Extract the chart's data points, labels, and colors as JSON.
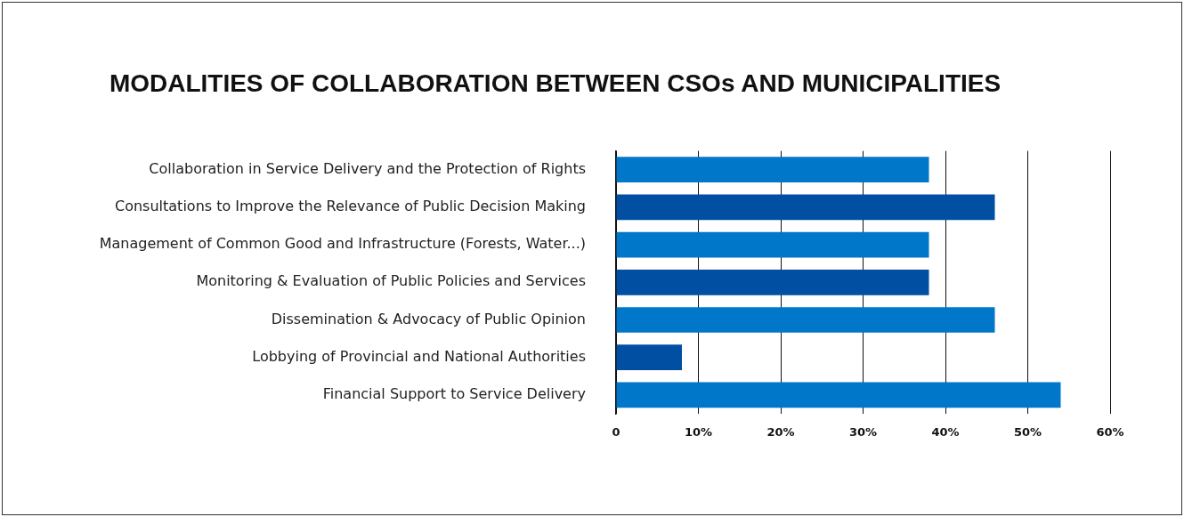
{
  "chart_data": {
    "type": "bar",
    "orientation": "horizontal",
    "title": "MODALITIES OF COLLABORATION BETWEEN CSOs AND MUNICIPALITIES",
    "categories": [
      "Collaboration in Service Delivery and the Protection of Rights",
      "Consultations to Improve the Relevance of Public Decision Making",
      "Management of Common Good and Infrastructure (Forests, Water...)",
      "Monitoring & Evaluation of Public Policies and Services",
      "Dissemination & Advocacy of Public Opinion",
      "Lobbying of Provincial and National Authorities",
      "Financial Support to Service Delivery"
    ],
    "values": [
      38,
      46,
      38,
      38,
      46,
      8,
      54
    ],
    "colors": [
      "#0077c8",
      "#004fa3",
      "#0077c8",
      "#004fa3",
      "#0077c8",
      "#004fa3",
      "#0077c8"
    ],
    "xlim": [
      0,
      60
    ],
    "xticks": [
      0,
      {
        "value": 10,
        "label": "10%"
      },
      {
        "value": 20,
        "label": "20%"
      },
      {
        "value": 30,
        "label": "30%"
      },
      {
        "value": 40,
        "label": "40%"
      },
      {
        "value": 50,
        "label": "50%"
      },
      {
        "value": 60,
        "label": "60%"
      }
    ],
    "grid": "x",
    "legend": false
  }
}
